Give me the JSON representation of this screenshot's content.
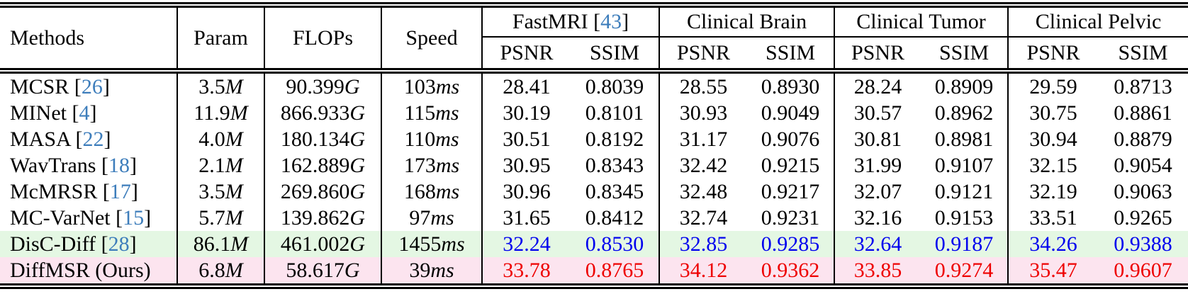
{
  "table": {
    "header": {
      "methods": "Methods",
      "param": "Param",
      "flops": "FLOPs",
      "speed": "Speed",
      "groups": [
        {
          "label": "FastMRI",
          "ref": "43"
        },
        {
          "label": "Clinical Brain",
          "ref": ""
        },
        {
          "label": "Clinical Tumor",
          "ref": ""
        },
        {
          "label": "Clinical Pelvic",
          "ref": ""
        }
      ],
      "subheaders": [
        "PSNR",
        "SSIM"
      ]
    },
    "units": {
      "param": "M",
      "flops": "G",
      "speed": "ms"
    },
    "rows": [
      {
        "method": "MCSR",
        "ref": "26",
        "param": "3.5",
        "flops": "90.399",
        "speed": "103",
        "metrics": [
          "28.41",
          "0.8039",
          "28.55",
          "0.8930",
          "28.24",
          "0.8909",
          "29.59",
          "0.8713"
        ],
        "style": "normal"
      },
      {
        "method": "MINet",
        "ref": "4",
        "param": "11.9",
        "flops": "866.933",
        "speed": "115",
        "metrics": [
          "30.19",
          "0.8101",
          "30.93",
          "0.9049",
          "30.57",
          "0.8962",
          "30.75",
          "0.8861"
        ],
        "style": "normal"
      },
      {
        "method": "MASA",
        "ref": "22",
        "param": "4.0",
        "flops": "180.134",
        "speed": "110",
        "metrics": [
          "30.51",
          "0.8192",
          "31.17",
          "0.9076",
          "30.81",
          "0.8981",
          "30.94",
          "0.8879"
        ],
        "style": "normal"
      },
      {
        "method": "WavTrans",
        "ref": "18",
        "param": "2.1",
        "flops": "162.889",
        "speed": "173",
        "metrics": [
          "30.95",
          "0.8343",
          "32.42",
          "0.9215",
          "31.99",
          "0.9107",
          "32.15",
          "0.9054"
        ],
        "style": "normal"
      },
      {
        "method": "McMRSR",
        "ref": "17",
        "param": "3.5",
        "flops": "269.860",
        "speed": "168",
        "metrics": [
          "30.96",
          "0.8345",
          "32.48",
          "0.9217",
          "32.07",
          "0.9121",
          "32.19",
          "0.9063"
        ],
        "style": "normal"
      },
      {
        "method": "MC-VarNet",
        "ref": "15",
        "param": "5.7",
        "flops": "139.862",
        "speed": "97",
        "metrics": [
          "31.65",
          "0.8412",
          "32.74",
          "0.9231",
          "32.16",
          "0.9153",
          "33.51",
          "0.9265"
        ],
        "style": "normal"
      },
      {
        "method": "DisC-Diff",
        "ref": "28",
        "param": "86.1",
        "flops": "461.002",
        "speed": "1455",
        "metrics": [
          "32.24",
          "0.8530",
          "32.85",
          "0.9285",
          "32.64",
          "0.9187",
          "34.26",
          "0.9388"
        ],
        "style": "second_best"
      },
      {
        "method": "DiffMSR (Ours)",
        "ref": "",
        "param": "6.8",
        "flops": "58.617",
        "speed": "39",
        "metrics": [
          "33.78",
          "0.8765",
          "34.12",
          "0.9362",
          "33.85",
          "0.9274",
          "35.47",
          "0.9607"
        ],
        "style": "best"
      }
    ],
    "colors": {
      "citation_link": "#3d7dbb",
      "second_best_text": "#0000ee",
      "best_text": "#ee0000",
      "second_best_row_bg": "#e4f7e3",
      "best_row_bg": "#fce4ef"
    }
  }
}
